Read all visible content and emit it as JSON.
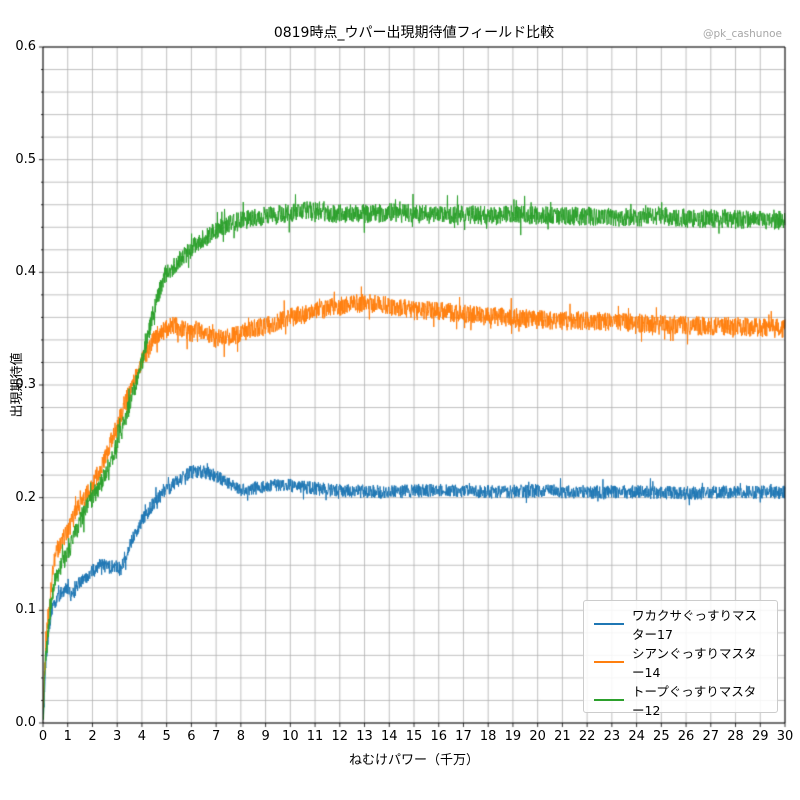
{
  "page": {
    "watermark": "@pk_cashunoe"
  },
  "chart_data": {
    "type": "line",
    "title": "0819時点_ウパー出現期待値フィールド比較",
    "xlabel": "ねむけパワー（千万）",
    "ylabel": "出現期待値",
    "xlim": [
      0,
      30
    ],
    "ylim": [
      0,
      0.6
    ],
    "x_tick_labels": [
      "0",
      "1",
      "2",
      "3",
      "4",
      "5",
      "6",
      "7",
      "8",
      "9",
      "10",
      "11",
      "12",
      "13",
      "14",
      "15",
      "16",
      "17",
      "18",
      "19",
      "20",
      "21",
      "22",
      "23",
      "24",
      "25",
      "26",
      "27",
      "28",
      "29",
      "30"
    ],
    "y_tick_labels": [
      "0.0",
      "0.1",
      "0.2",
      "0.3",
      "0.4",
      "0.5",
      "0.6"
    ],
    "grid": {
      "color": "#b0b0b0",
      "x_step": 1,
      "y_step": 0.02
    },
    "legend_position": "lower right",
    "series": [
      {
        "name": "ワカクサぐっすりマスター17",
        "color": "#1f77b4",
        "noise": 0.006,
        "points": [
          [
            0.02,
            0.005
          ],
          [
            0.1,
            0.05
          ],
          [
            0.25,
            0.085
          ],
          [
            0.35,
            0.1
          ],
          [
            0.5,
            0.105
          ],
          [
            0.7,
            0.115
          ],
          [
            1.0,
            0.12
          ],
          [
            1.15,
            0.112
          ],
          [
            1.5,
            0.125
          ],
          [
            2.0,
            0.135
          ],
          [
            2.3,
            0.141
          ],
          [
            2.7,
            0.138
          ],
          [
            3.0,
            0.14
          ],
          [
            3.15,
            0.136
          ],
          [
            3.5,
            0.158
          ],
          [
            4.0,
            0.18
          ],
          [
            4.5,
            0.196
          ],
          [
            5.0,
            0.207
          ],
          [
            5.5,
            0.216
          ],
          [
            6.0,
            0.223
          ],
          [
            6.5,
            0.223
          ],
          [
            7.0,
            0.219
          ],
          [
            7.5,
            0.213
          ],
          [
            8.0,
            0.206
          ],
          [
            8.5,
            0.208
          ],
          [
            9.0,
            0.21
          ],
          [
            10,
            0.211
          ],
          [
            11,
            0.208
          ],
          [
            12,
            0.206
          ],
          [
            14,
            0.205
          ],
          [
            16,
            0.207
          ],
          [
            18,
            0.205
          ],
          [
            20,
            0.206
          ],
          [
            22,
            0.205
          ],
          [
            24,
            0.205
          ],
          [
            26,
            0.204
          ],
          [
            28,
            0.205
          ],
          [
            30,
            0.205
          ]
        ]
      },
      {
        "name": "シアンぐっすりマスター14",
        "color": "#ff7f0e",
        "noise": 0.0085,
        "points": [
          [
            0.02,
            0.02
          ],
          [
            0.1,
            0.07
          ],
          [
            0.25,
            0.1
          ],
          [
            0.4,
            0.135
          ],
          [
            0.5,
            0.15
          ],
          [
            0.8,
            0.163
          ],
          [
            1.0,
            0.17
          ],
          [
            1.3,
            0.185
          ],
          [
            1.6,
            0.198
          ],
          [
            2.0,
            0.21
          ],
          [
            2.5,
            0.235
          ],
          [
            3.0,
            0.263
          ],
          [
            3.5,
            0.295
          ],
          [
            4.0,
            0.32
          ],
          [
            4.5,
            0.342
          ],
          [
            5.0,
            0.35
          ],
          [
            5.3,
            0.353
          ],
          [
            5.6,
            0.35
          ],
          [
            6.0,
            0.346
          ],
          [
            6.3,
            0.35
          ],
          [
            6.6,
            0.346
          ],
          [
            7.0,
            0.341
          ],
          [
            7.5,
            0.343
          ],
          [
            8.0,
            0.346
          ],
          [
            8.5,
            0.35
          ],
          [
            9.0,
            0.352
          ],
          [
            9.5,
            0.356
          ],
          [
            10,
            0.36
          ],
          [
            10.5,
            0.362
          ],
          [
            11,
            0.365
          ],
          [
            11.5,
            0.368
          ],
          [
            12,
            0.37
          ],
          [
            12.5,
            0.372
          ],
          [
            13,
            0.373
          ],
          [
            13.5,
            0.372
          ],
          [
            14,
            0.37
          ],
          [
            14.5,
            0.368
          ],
          [
            15,
            0.366
          ],
          [
            16,
            0.366
          ],
          [
            17,
            0.363
          ],
          [
            18,
            0.361
          ],
          [
            19,
            0.36
          ],
          [
            20,
            0.358
          ],
          [
            21,
            0.357
          ],
          [
            22,
            0.357
          ],
          [
            23,
            0.356
          ],
          [
            24,
            0.355
          ],
          [
            25,
            0.354
          ],
          [
            26,
            0.353
          ],
          [
            27,
            0.352
          ],
          [
            28,
            0.352
          ],
          [
            29,
            0.351
          ],
          [
            30,
            0.35
          ]
        ]
      },
      {
        "name": "トープぐっすりマスター12",
        "color": "#2ca02c",
        "noise": 0.0085,
        "points": [
          [
            0.02,
            0.01
          ],
          [
            0.1,
            0.055
          ],
          [
            0.3,
            0.1
          ],
          [
            0.5,
            0.128
          ],
          [
            0.8,
            0.143
          ],
          [
            1.0,
            0.15
          ],
          [
            1.3,
            0.168
          ],
          [
            1.6,
            0.184
          ],
          [
            2.0,
            0.2
          ],
          [
            2.4,
            0.215
          ],
          [
            2.8,
            0.235
          ],
          [
            3.0,
            0.248
          ],
          [
            3.3,
            0.268
          ],
          [
            3.6,
            0.29
          ],
          [
            4.0,
            0.32
          ],
          [
            4.2,
            0.34
          ],
          [
            4.5,
            0.368
          ],
          [
            4.8,
            0.39
          ],
          [
            5.0,
            0.4
          ],
          [
            5.3,
            0.406
          ],
          [
            5.6,
            0.412
          ],
          [
            6.0,
            0.421
          ],
          [
            6.5,
            0.43
          ],
          [
            7.0,
            0.437
          ],
          [
            7.5,
            0.442
          ],
          [
            8.0,
            0.446
          ],
          [
            8.5,
            0.448
          ],
          [
            9.0,
            0.45
          ],
          [
            9.5,
            0.451
          ],
          [
            10,
            0.453
          ],
          [
            10.5,
            0.455
          ],
          [
            11,
            0.456
          ],
          [
            11.5,
            0.453
          ],
          [
            12,
            0.452
          ],
          [
            13,
            0.452
          ],
          [
            14,
            0.453
          ],
          [
            15,
            0.452
          ],
          [
            16,
            0.451
          ],
          [
            17,
            0.452
          ],
          [
            18,
            0.45
          ],
          [
            19,
            0.451
          ],
          [
            20,
            0.45
          ],
          [
            21,
            0.45
          ],
          [
            22,
            0.45
          ],
          [
            23,
            0.449
          ],
          [
            24,
            0.449
          ],
          [
            25,
            0.45
          ],
          [
            26,
            0.448
          ],
          [
            27,
            0.448
          ],
          [
            28,
            0.447
          ],
          [
            29,
            0.447
          ],
          [
            30,
            0.446
          ]
        ]
      }
    ]
  }
}
